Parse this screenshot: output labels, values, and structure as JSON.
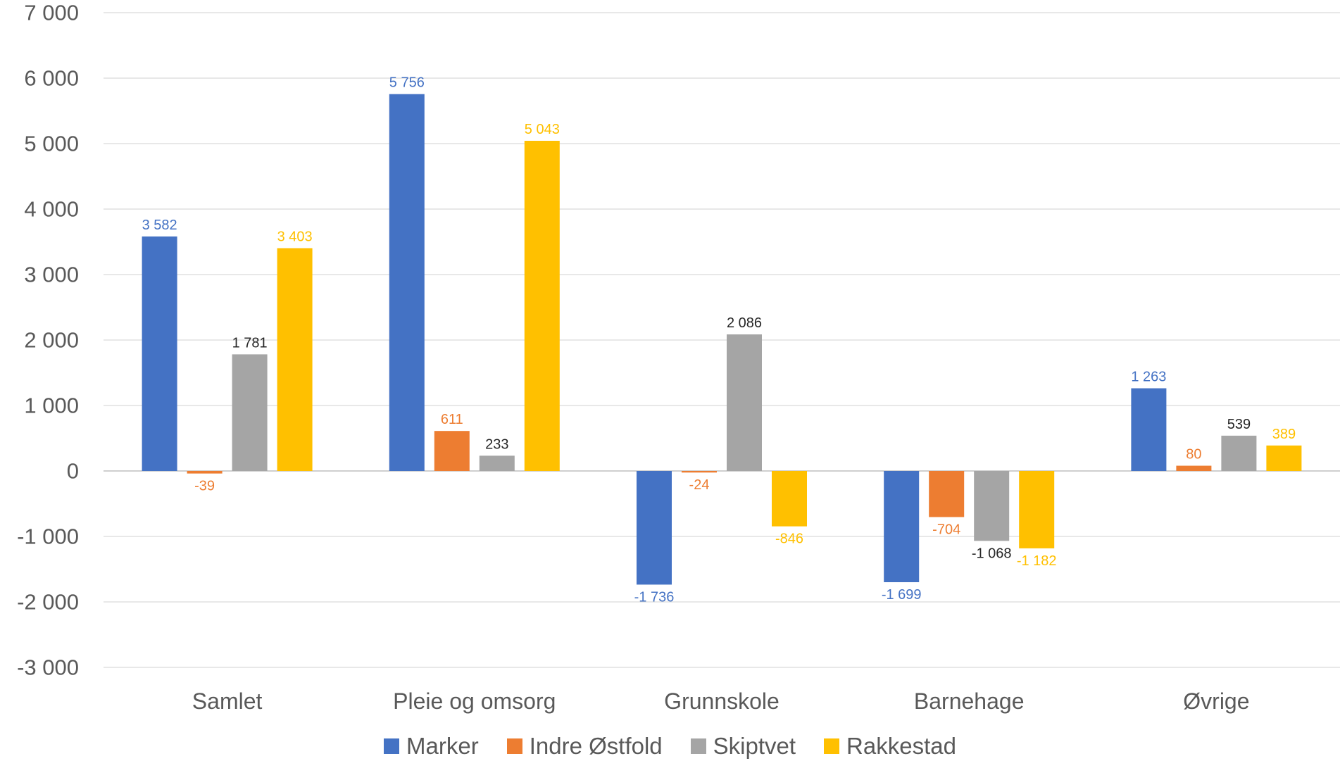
{
  "chart_data": {
    "type": "bar",
    "title": "",
    "xlabel": "",
    "ylabel": "",
    "categories": [
      "Samlet",
      "Pleie og omsorg",
      "Grunnskole",
      "Barnehage",
      "Øvrige"
    ],
    "ylim": [
      -3000,
      7000
    ],
    "yticks": [
      7000,
      6000,
      5000,
      4000,
      3000,
      2000,
      1000,
      0,
      -1000,
      -2000,
      -3000
    ],
    "ytick_labels": [
      "7 000",
      "6 000",
      "5 000",
      "4 000",
      "3 000",
      "2 000",
      "1 000",
      "0",
      "-1 000",
      "-2 000",
      "-3 000"
    ],
    "grid": true,
    "legend_position": "bottom",
    "series": [
      {
        "name": "Marker",
        "color": "#4472C4",
        "label_color": "#4472C4",
        "values": [
          3582,
          5756,
          -1736,
          -1699,
          1263
        ],
        "labels": [
          "3 582",
          "5 756",
          "-1 736",
          "-1 699",
          "1 263"
        ]
      },
      {
        "name": "Indre Østfold",
        "color": "#ED7D31",
        "label_color": "#ED7D31",
        "values": [
          -39,
          611,
          -24,
          -704,
          80
        ],
        "labels": [
          "-39",
          "611",
          "-24",
          "-704",
          "80"
        ]
      },
      {
        "name": "Skiptvet",
        "color": "#A5A5A5",
        "label_color": "#262626",
        "values": [
          1781,
          233,
          2086,
          -1068,
          539
        ],
        "labels": [
          "1 781",
          "233",
          "2 086",
          "-1 068",
          "539"
        ]
      },
      {
        "name": "Rakkestad",
        "color": "#FFC000",
        "label_color": "#FFC000",
        "values": [
          3403,
          5043,
          -846,
          -1182,
          389
        ],
        "labels": [
          "3 403",
          "5 043",
          "-846",
          "-1 182",
          "389"
        ]
      }
    ]
  }
}
